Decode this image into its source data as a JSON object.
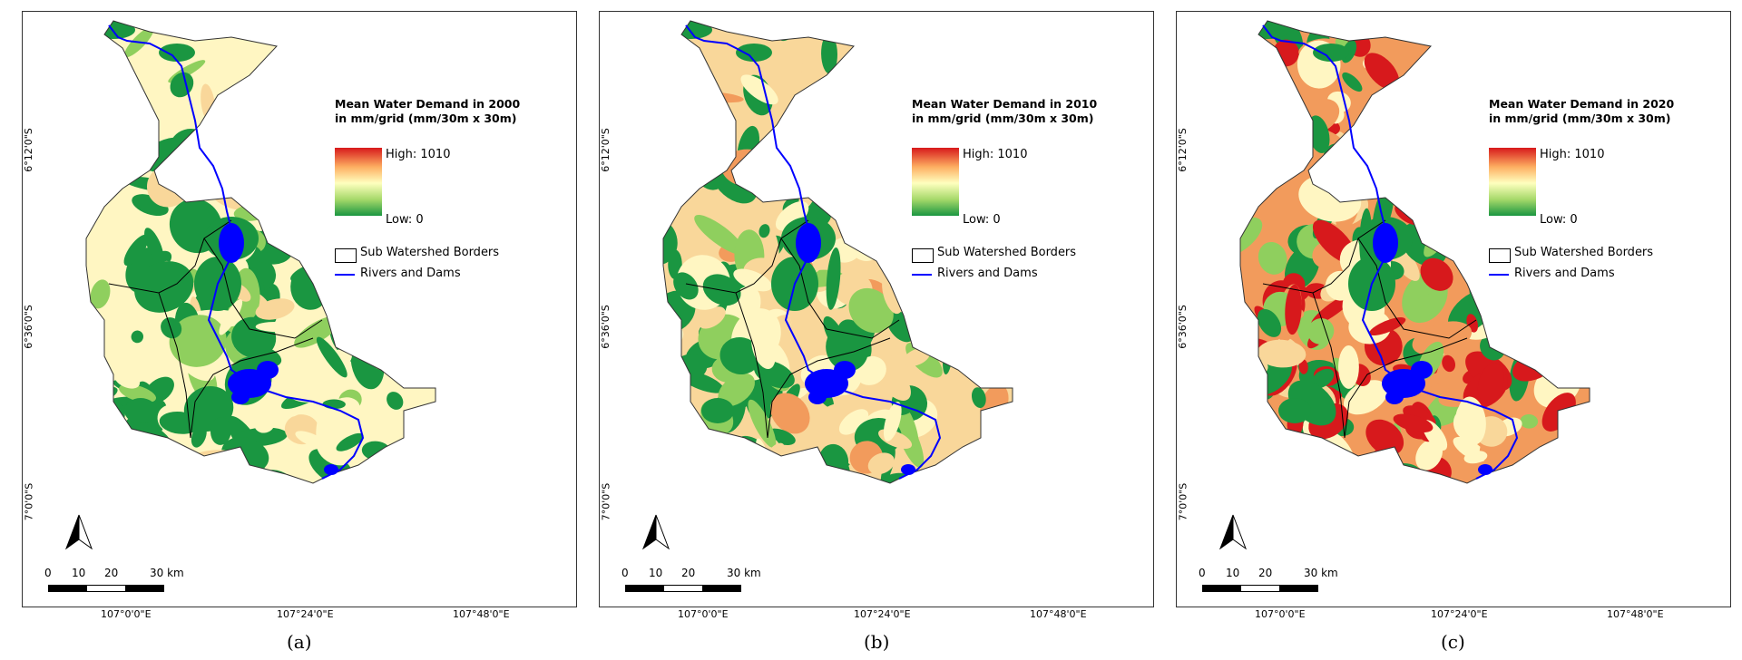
{
  "panels": [
    {
      "legend": {
        "title_line1": "Mean Water Demand in 2000",
        "title_line2": "in mm/grid (mm/30m x 30m)",
        "high": "High: 1010",
        "low": "Low: 0",
        "sub_watershed": "Sub Watershed Borders",
        "rivers": "Rivers and Dams"
      },
      "caption": "(a)",
      "palette": "low",
      "mix": {
        "green": 0.45,
        "lightgreen": 0.2,
        "cream": 0.25,
        "peach": 0.1,
        "orange": 0.0,
        "red": 0.0
      }
    },
    {
      "legend": {
        "title_line1": "Mean Water Demand in 2010",
        "title_line2": "in mm/grid (mm/30m x 30m)",
        "high": "High: 1010",
        "low": "Low: 0",
        "sub_watershed": "Sub Watershed Borders",
        "rivers": "Rivers and Dams"
      },
      "caption": "(b)",
      "palette": "mid",
      "mix": {
        "green": 0.3,
        "lightgreen": 0.15,
        "cream": 0.25,
        "peach": 0.2,
        "orange": 0.1,
        "red": 0.0
      }
    },
    {
      "legend": {
        "title_line1": "Mean Water Demand in 2020",
        "title_line2": "in mm/grid (mm/30m x 30m)",
        "high": "High: 1010",
        "low": "Low: 0",
        "sub_watershed": "Sub Watershed Borders",
        "rivers": "Rivers and Dams"
      },
      "caption": "(c)",
      "palette": "high",
      "mix": {
        "green": 0.2,
        "lightgreen": 0.15,
        "cream": 0.15,
        "peach": 0.1,
        "orange": 0.1,
        "red": 0.3
      }
    }
  ],
  "axes": {
    "lat_labels": [
      "6°12'0\"S",
      "6°36'0\"S",
      "7°0'0\"S"
    ],
    "lon_labels": [
      "107°0'0\"E",
      "107°24'0\"E",
      "107°48'0\"E"
    ]
  },
  "scale": {
    "ticks": [
      "0",
      "10",
      "20",
      "30 km"
    ]
  },
  "colors": {
    "green": "#1a9641",
    "lightgreen": "#8fcf5e",
    "cream": "#fff6c2",
    "peach": "#f9d79a",
    "orange": "#f29b5c",
    "red": "#d7191c",
    "river": "#0000ff",
    "border": "#000000"
  }
}
